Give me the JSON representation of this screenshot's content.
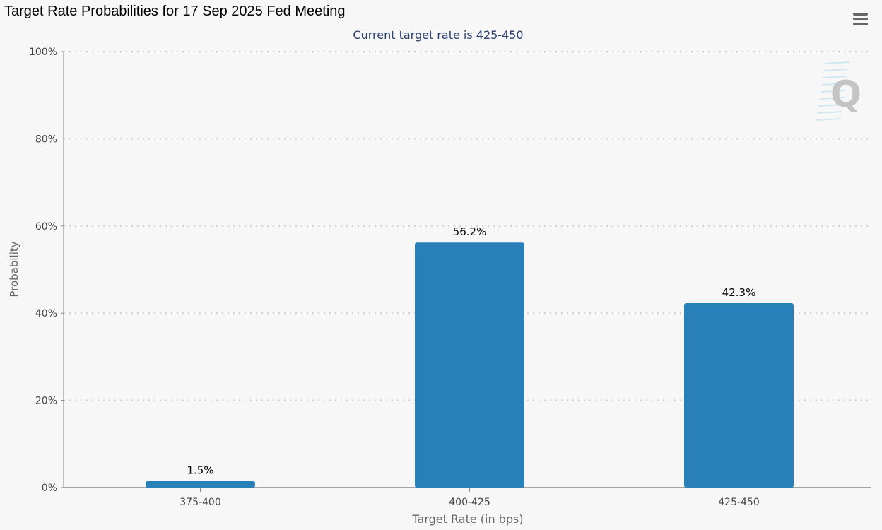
{
  "header": {
    "title": "Target Rate Probabilities for 17 Sep 2025 Fed Meeting"
  },
  "menu": {
    "icon": "hamburger-menu-icon"
  },
  "watermark": {
    "icon": "q-logo-watermark-icon"
  },
  "colors": {
    "bar": "#2980b9",
    "background": "#f7f7f7",
    "subtitle": "#2b3f6e",
    "axis_text": "#444444",
    "grid": "#cccccc"
  },
  "chart_data": {
    "type": "bar",
    "title": "Target Rate Probabilities for 17 Sep 2025 Fed Meeting",
    "subtitle": "Current target rate is 425-450",
    "xlabel": "Target Rate (in bps)",
    "ylabel": "Probability",
    "categories": [
      "375-400",
      "400-425",
      "425-450"
    ],
    "values": [
      1.5,
      56.2,
      42.3
    ],
    "data_labels": [
      "1.5%",
      "56.2%",
      "42.3%"
    ],
    "ylim": [
      0,
      100
    ],
    "yticks": [
      0,
      20,
      40,
      60,
      80,
      100
    ],
    "ytick_labels": [
      "0%",
      "20%",
      "40%",
      "60%",
      "80%",
      "100%"
    ],
    "grid": true,
    "legend": "none"
  }
}
